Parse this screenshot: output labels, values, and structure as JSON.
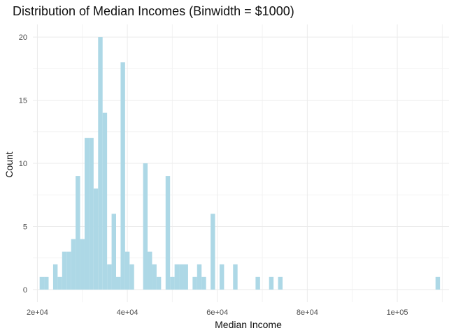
{
  "chart_data": {
    "type": "bar",
    "title": "Distribution of Median Incomes (Binwidth = $1000)",
    "xlabel": "Median Income",
    "ylabel": "Count",
    "xlim": [
      19000,
      111500
    ],
    "ylim": [
      -1,
      21
    ],
    "binwidth": 1000,
    "bar_color": "#add8e6",
    "background": "#ffffff",
    "grid": true,
    "x_ticks": [
      {
        "value": 20000,
        "label": "2e+04"
      },
      {
        "value": 40000,
        "label": "4e+04"
      },
      {
        "value": 60000,
        "label": "6e+04"
      },
      {
        "value": 80000,
        "label": "8e+04"
      },
      {
        "value": 100000,
        "label": "1e+05"
      }
    ],
    "y_ticks": [
      {
        "value": 0,
        "label": "0"
      },
      {
        "value": 5,
        "label": "5"
      },
      {
        "value": 10,
        "label": "10"
      },
      {
        "value": 15,
        "label": "15"
      },
      {
        "value": 20,
        "label": "20"
      }
    ],
    "bins": [
      {
        "center": 21000,
        "count": 1
      },
      {
        "center": 22000,
        "count": 1
      },
      {
        "center": 24000,
        "count": 2
      },
      {
        "center": 25000,
        "count": 1
      },
      {
        "center": 26000,
        "count": 3
      },
      {
        "center": 27000,
        "count": 3
      },
      {
        "center": 28000,
        "count": 4
      },
      {
        "center": 29000,
        "count": 9
      },
      {
        "center": 30000,
        "count": 4
      },
      {
        "center": 31000,
        "count": 12
      },
      {
        "center": 32000,
        "count": 12
      },
      {
        "center": 33000,
        "count": 8
      },
      {
        "center": 34000,
        "count": 20
      },
      {
        "center": 35000,
        "count": 14
      },
      {
        "center": 36000,
        "count": 2
      },
      {
        "center": 37000,
        "count": 6
      },
      {
        "center": 38000,
        "count": 1
      },
      {
        "center": 39000,
        "count": 18
      },
      {
        "center": 40000,
        "count": 3
      },
      {
        "center": 41000,
        "count": 2
      },
      {
        "center": 44000,
        "count": 10
      },
      {
        "center": 45000,
        "count": 3
      },
      {
        "center": 46000,
        "count": 2
      },
      {
        "center": 47000,
        "count": 1
      },
      {
        "center": 49000,
        "count": 9
      },
      {
        "center": 50000,
        "count": 1
      },
      {
        "center": 51000,
        "count": 2
      },
      {
        "center": 52000,
        "count": 2
      },
      {
        "center": 53000,
        "count": 2
      },
      {
        "center": 55000,
        "count": 1
      },
      {
        "center": 56000,
        "count": 2
      },
      {
        "center": 57000,
        "count": 1
      },
      {
        "center": 59000,
        "count": 6
      },
      {
        "center": 61000,
        "count": 2
      },
      {
        "center": 64000,
        "count": 2
      },
      {
        "center": 69000,
        "count": 1
      },
      {
        "center": 72000,
        "count": 1
      },
      {
        "center": 74000,
        "count": 1
      },
      {
        "center": 109000,
        "count": 1
      }
    ]
  }
}
